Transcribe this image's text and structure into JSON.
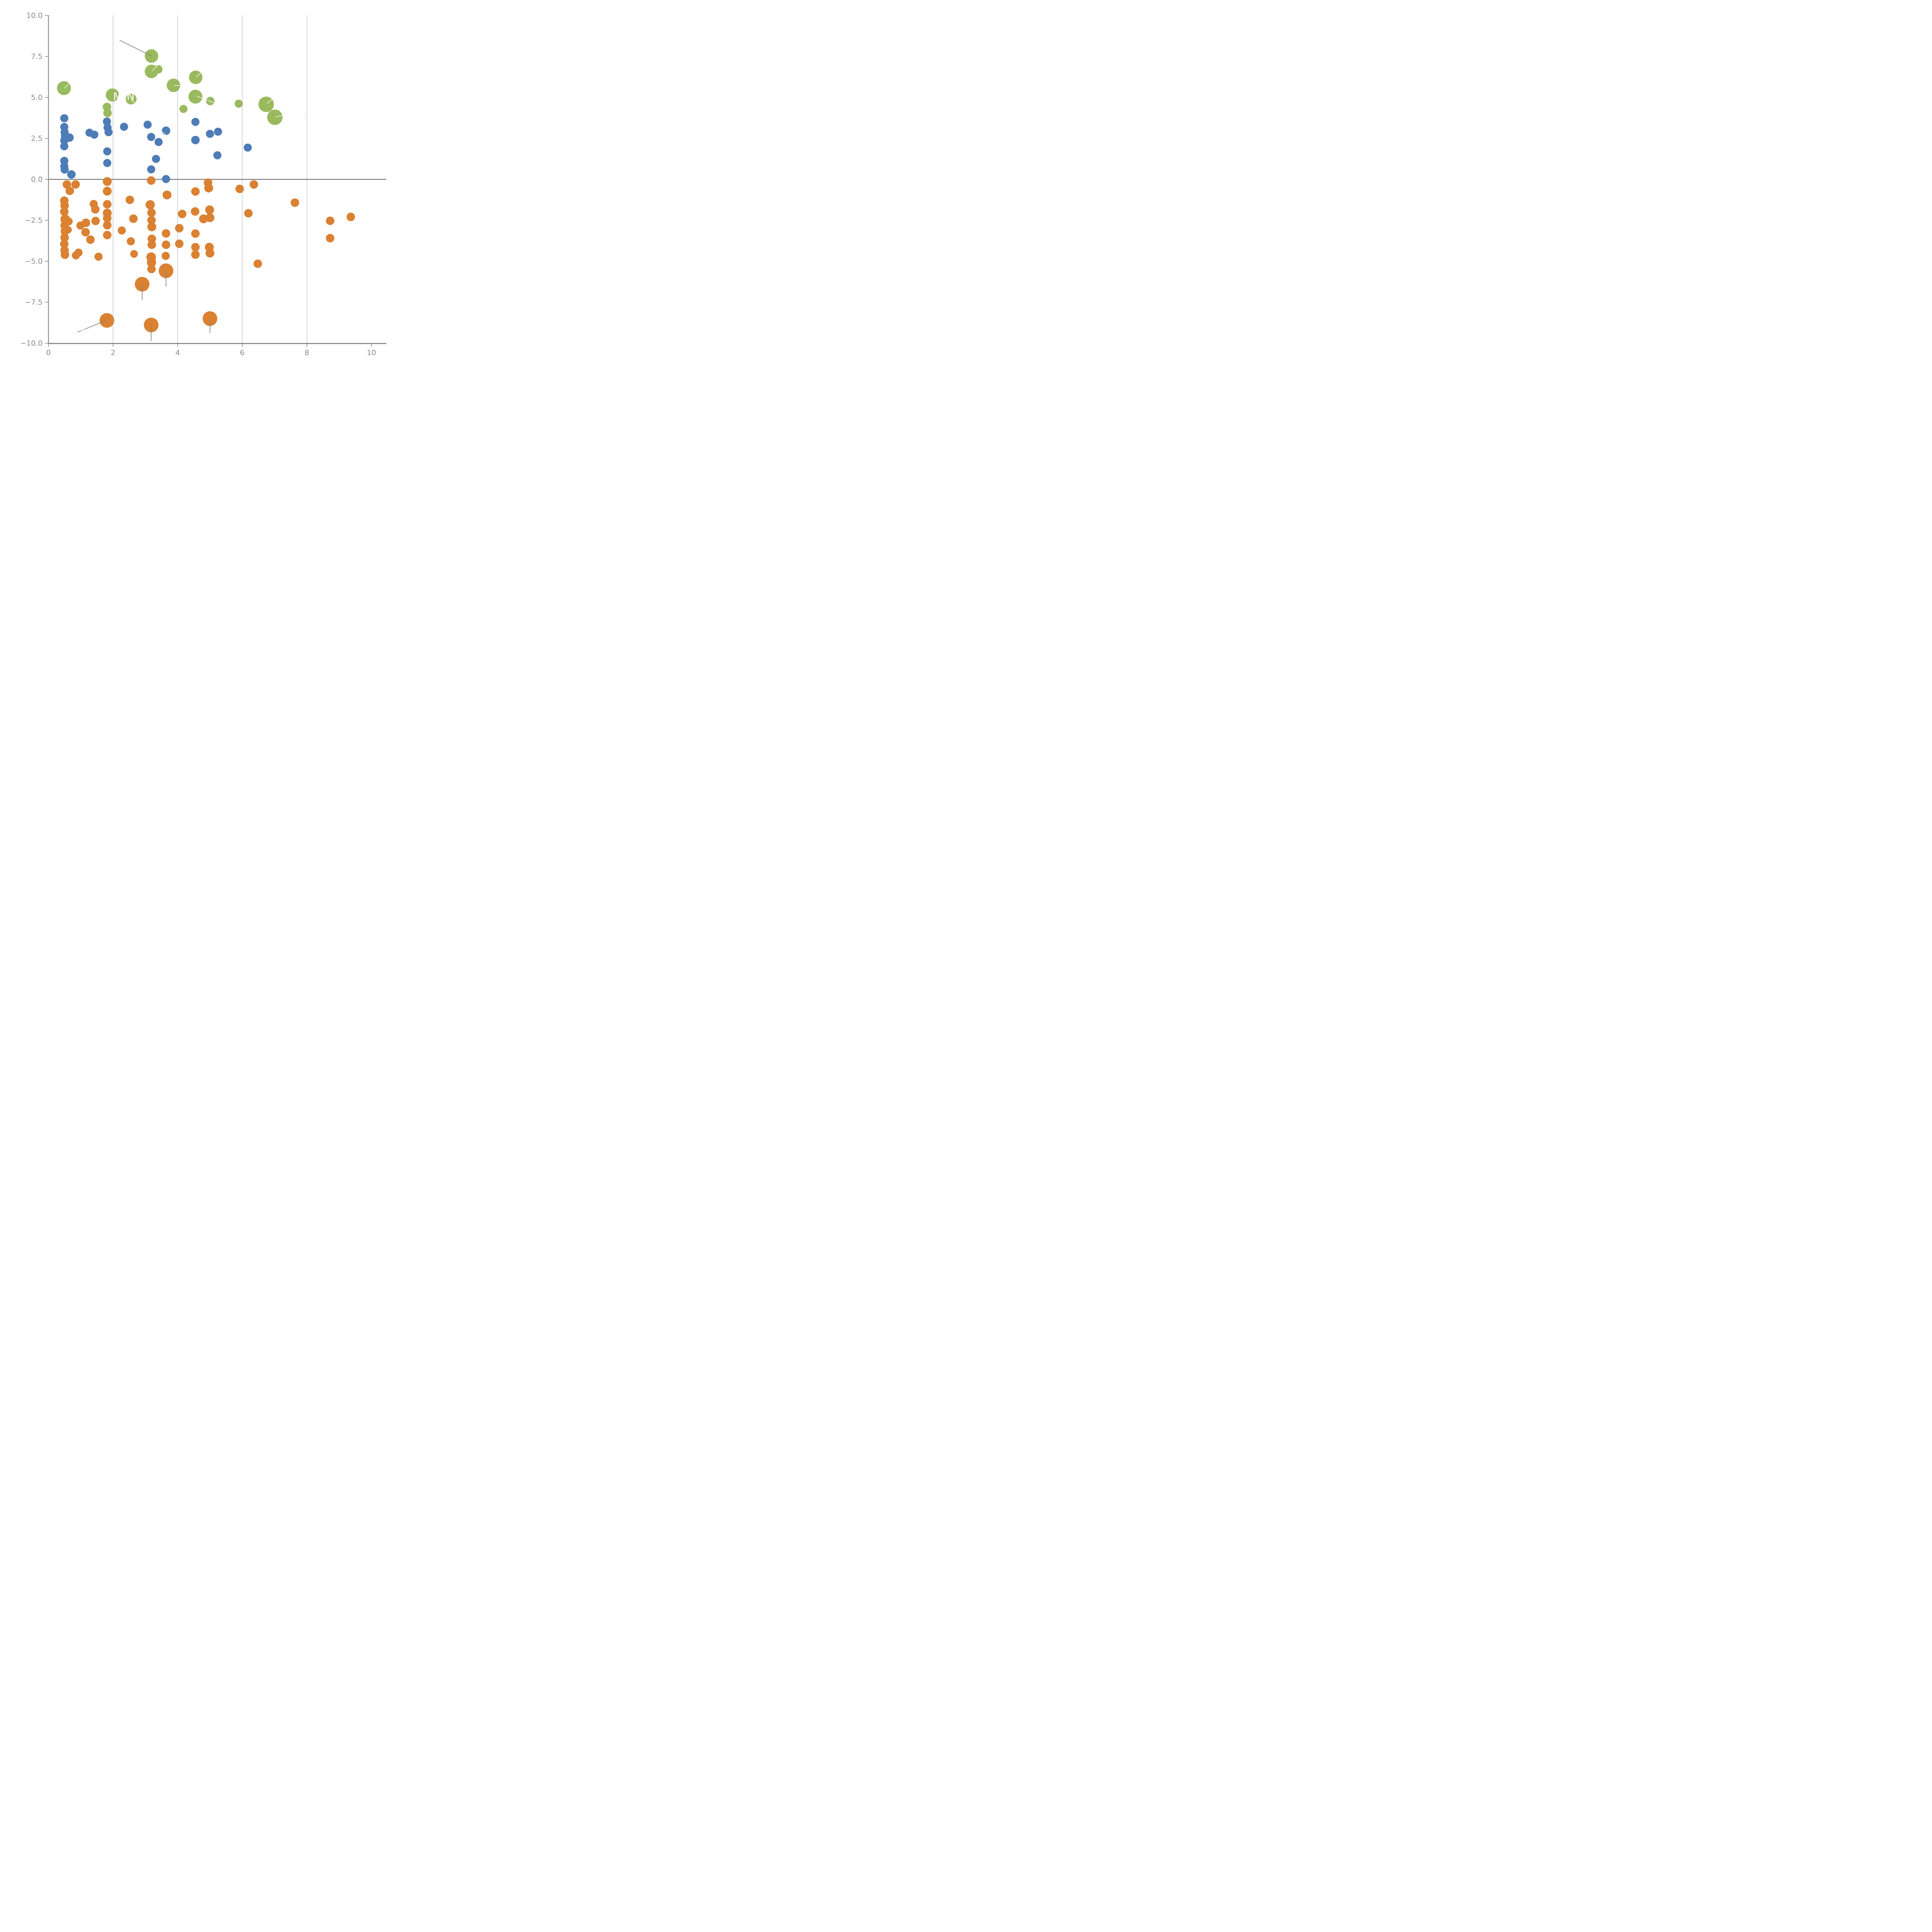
{
  "colors": {
    "green": "#9aba5e",
    "blue": "#4d7cb7",
    "orange": "#da8132",
    "axis_gray": "#7c7c7c",
    "tick_label_gray": "#8c8c8c",
    "gridline_gray": "#9a9a9a",
    "annotation_gray": "#82827a",
    "white_line": "#eef4e4",
    "background": "#ffffff"
  },
  "chart_data": {
    "type": "scatter",
    "title": "",
    "xlabel": "",
    "ylabel": "",
    "xlim": [
      0,
      10.46
    ],
    "ylim": [
      -10.02,
      10.02
    ],
    "grid": "vertical-only",
    "legend": "none",
    "x_ticks": [
      {
        "v": 0,
        "label": "0"
      },
      {
        "v": 2,
        "label": "2"
      },
      {
        "v": 4,
        "label": "4"
      },
      {
        "v": 6,
        "label": "6"
      },
      {
        "v": 8,
        "label": "8"
      },
      {
        "v": 10,
        "label": "10"
      }
    ],
    "y_ticks": [
      {
        "v": 10,
        "label": "10.0"
      },
      {
        "v": 7.5,
        "label": "7.5"
      },
      {
        "v": 5,
        "label": "5.0"
      },
      {
        "v": 2.5,
        "label": "2.5"
      },
      {
        "v": 0,
        "label": "0.0"
      },
      {
        "v": -2.5,
        "label": "−2.5"
      },
      {
        "v": -5,
        "label": "−5.0"
      },
      {
        "v": -7.5,
        "label": "−7.5"
      },
      {
        "v": -10,
        "label": "−10.0"
      }
    ],
    "gridlines_x": [
      2,
      4,
      6,
      8
    ],
    "zero_line_y": 0,
    "series": [
      {
        "name": "green-bubbles",
        "color_key": "green",
        "points": [
          [
            0.48,
            5.57,
            18
          ],
          [
            1.98,
            5.15,
            17
          ],
          [
            2.56,
            4.9,
            14
          ],
          [
            1.81,
            4.42,
            11
          ],
          [
            1.83,
            4.05,
            11
          ],
          [
            3.19,
            7.53,
            17.5
          ],
          [
            3.19,
            6.59,
            17.5
          ],
          [
            3.4,
            6.72,
            11
          ],
          [
            3.87,
            5.74,
            17.5
          ],
          [
            4.56,
            6.23,
            17.5
          ],
          [
            4.55,
            5.05,
            18
          ],
          [
            5.01,
            4.78,
            11
          ],
          [
            4.18,
            4.3,
            10.5
          ],
          [
            5.89,
            4.62,
            10.5
          ],
          [
            6.74,
            4.58,
            20
          ],
          [
            7.01,
            3.79,
            20
          ]
        ]
      },
      {
        "name": "blue-dots",
        "color_key": "blue",
        "points": [
          [
            0.49,
            3.73,
            10.5
          ],
          [
            0.49,
            3.2,
            10.5
          ],
          [
            0.5,
            2.88,
            10.5
          ],
          [
            0.51,
            2.63,
            10.5
          ],
          [
            0.65,
            2.55,
            11
          ],
          [
            0.49,
            2.37,
            10.5
          ],
          [
            0.49,
            2.02,
            10.5
          ],
          [
            0.49,
            1.13,
            10.5
          ],
          [
            0.49,
            0.8,
            10.5
          ],
          [
            0.5,
            0.6,
            10.5
          ],
          [
            0.71,
            0.3,
            11
          ],
          [
            1.27,
            2.85,
            10.5
          ],
          [
            1.42,
            2.73,
            10.5
          ],
          [
            1.81,
            3.53,
            10.5
          ],
          [
            1.83,
            3.16,
            10.5
          ],
          [
            1.86,
            2.88,
            10.5
          ],
          [
            1.82,
            1.71,
            10.5
          ],
          [
            1.82,
            1.0,
            10.5
          ],
          [
            2.34,
            3.21,
            10.5
          ],
          [
            3.07,
            3.34,
            10.5
          ],
          [
            3.64,
            2.97,
            11
          ],
          [
            3.18,
            2.59,
            10.5
          ],
          [
            3.41,
            2.28,
            10.5
          ],
          [
            3.33,
            1.25,
            10.5
          ],
          [
            3.18,
            0.61,
            10.5
          ],
          [
            3.64,
            0.02,
            10.5
          ],
          [
            4.55,
            3.51,
            10.5
          ],
          [
            4.55,
            2.4,
            11
          ],
          [
            5.0,
            2.78,
            10.5
          ],
          [
            5.25,
            2.91,
            10.5
          ],
          [
            5.23,
            1.47,
            10.5
          ],
          [
            6.17,
            1.94,
            10.5
          ]
        ]
      },
      {
        "name": "orange-dots",
        "color_key": "orange",
        "points": [
          [
            0.57,
            -0.31,
            11
          ],
          [
            0.84,
            -0.31,
            11
          ],
          [
            0.66,
            -0.7,
            11
          ],
          [
            0.49,
            -1.3,
            11
          ],
          [
            0.5,
            -1.6,
            11
          ],
          [
            0.49,
            -1.97,
            11
          ],
          [
            0.52,
            -2.44,
            12.5
          ],
          [
            0.63,
            -2.57,
            10
          ],
          [
            0.5,
            -2.82,
            11
          ],
          [
            0.51,
            -3.17,
            11
          ],
          [
            0.61,
            -3.08,
            9.5
          ],
          [
            0.5,
            -3.55,
            11
          ],
          [
            0.49,
            -3.95,
            11
          ],
          [
            0.5,
            -4.33,
            11
          ],
          [
            0.51,
            -4.6,
            11
          ],
          [
            0.85,
            -4.64,
            10.5
          ],
          [
            0.93,
            -4.47,
            10.5
          ],
          [
            1.55,
            -4.72,
            10.5
          ],
          [
            0.99,
            -2.82,
            10.5
          ],
          [
            1.16,
            -2.65,
            11
          ],
          [
            1.15,
            -3.23,
            11
          ],
          [
            1.3,
            -3.68,
            11
          ],
          [
            1.46,
            -2.54,
            11
          ],
          [
            1.4,
            -1.5,
            10.5
          ],
          [
            1.45,
            -1.83,
            11
          ],
          [
            1.82,
            -0.13,
            11.5
          ],
          [
            1.82,
            -0.72,
            11.5
          ],
          [
            1.82,
            -1.52,
            11
          ],
          [
            1.82,
            -2.06,
            11.5
          ],
          [
            1.82,
            -2.37,
            11
          ],
          [
            1.82,
            -2.8,
            11
          ],
          [
            1.82,
            -3.4,
            11
          ],
          [
            2.52,
            -1.25,
            11
          ],
          [
            2.63,
            -2.4,
            11
          ],
          [
            2.27,
            -3.12,
            10.5
          ],
          [
            2.55,
            -3.78,
            10.5
          ],
          [
            2.65,
            -4.55,
            10
          ],
          [
            3.15,
            -1.55,
            12
          ],
          [
            3.19,
            -2.03,
            11
          ],
          [
            3.19,
            -2.49,
            11
          ],
          [
            3.2,
            -2.9,
            11.5
          ],
          [
            3.2,
            -3.63,
            11
          ],
          [
            3.2,
            -3.99,
            11
          ],
          [
            3.18,
            -4.75,
            12.5
          ],
          [
            3.19,
            -5.07,
            12
          ],
          [
            3.19,
            -5.47,
            11
          ],
          [
            3.67,
            -0.95,
            11.5
          ],
          [
            3.18,
            -0.07,
            11
          ],
          [
            3.64,
            -3.3,
            11
          ],
          [
            3.64,
            -3.99,
            11
          ],
          [
            3.63,
            -4.67,
            10.5
          ],
          [
            4.05,
            -2.98,
            11
          ],
          [
            4.05,
            -3.93,
            11
          ],
          [
            4.14,
            -2.11,
            11
          ],
          [
            4.54,
            -1.96,
            11
          ],
          [
            4.55,
            -0.74,
            11
          ],
          [
            4.55,
            -3.31,
            11
          ],
          [
            4.55,
            -4.14,
            11
          ],
          [
            4.55,
            -4.59,
            11
          ],
          [
            4.8,
            -2.41,
            11.5
          ],
          [
            4.99,
            -1.86,
            11.5
          ],
          [
            5.0,
            -2.34,
            11.5
          ],
          [
            4.98,
            -4.14,
            11.5
          ],
          [
            5.0,
            -4.5,
            11.5
          ],
          [
            4.94,
            -0.2,
            11
          ],
          [
            4.96,
            -0.53,
            11.5
          ],
          [
            5.92,
            -0.58,
            11
          ],
          [
            6.36,
            -0.31,
            11
          ],
          [
            6.19,
            -2.07,
            11
          ],
          [
            6.48,
            -5.15,
            11
          ],
          [
            7.63,
            -1.42,
            11
          ],
          [
            8.72,
            -2.53,
            11
          ],
          [
            9.36,
            -2.29,
            11
          ],
          [
            8.72,
            -3.59,
            11
          ],
          [
            3.64,
            -5.58,
            19
          ],
          [
            2.9,
            -6.4,
            19
          ],
          [
            1.81,
            -8.61,
            19
          ],
          [
            3.18,
            -8.89,
            19
          ],
          [
            5.0,
            -8.5,
            19
          ]
        ]
      }
    ],
    "annotations": {
      "label": {
        "text": "M-N",
        "x": 2.34,
        "y": 5.03
      },
      "gray_lines": [
        [
          2.21,
          8.49,
          3.19,
          7.53
        ],
        [
          3.64,
          -5.66,
          3.64,
          -6.54
        ],
        [
          2.9,
          -6.47,
          2.9,
          -7.35
        ],
        [
          3.18,
          -8.96,
          3.18,
          -9.86
        ],
        [
          5.0,
          -8.58,
          5.0,
          -9.36
        ],
        [
          1.77,
          -8.62,
          0.9,
          -9.33
        ]
      ],
      "white_lines": [
        [
          0.5,
          5.57,
          0.63,
          5.83
        ],
        [
          2.56,
          4.86,
          2.74,
          4.53
        ],
        [
          3.21,
          6.62,
          3.4,
          6.99
        ],
        [
          3.9,
          5.74,
          4.1,
          5.73
        ],
        [
          4.58,
          6.26,
          4.72,
          6.51
        ],
        [
          4.59,
          5.08,
          5.13,
          4.67
        ],
        [
          6.77,
          4.64,
          6.91,
          4.87
        ],
        [
          7.03,
          3.83,
          7.24,
          3.88
        ],
        [
          3.51,
          2.92,
          3.63,
          2.73
        ],
        [
          5.93,
          3.93,
          6.03,
          4.06
        ],
        [
          7.91,
          3.93,
          8.01,
          4.06
        ],
        [
          1.13,
          -9.12,
          1.0,
          -9.23
        ]
      ]
    }
  }
}
